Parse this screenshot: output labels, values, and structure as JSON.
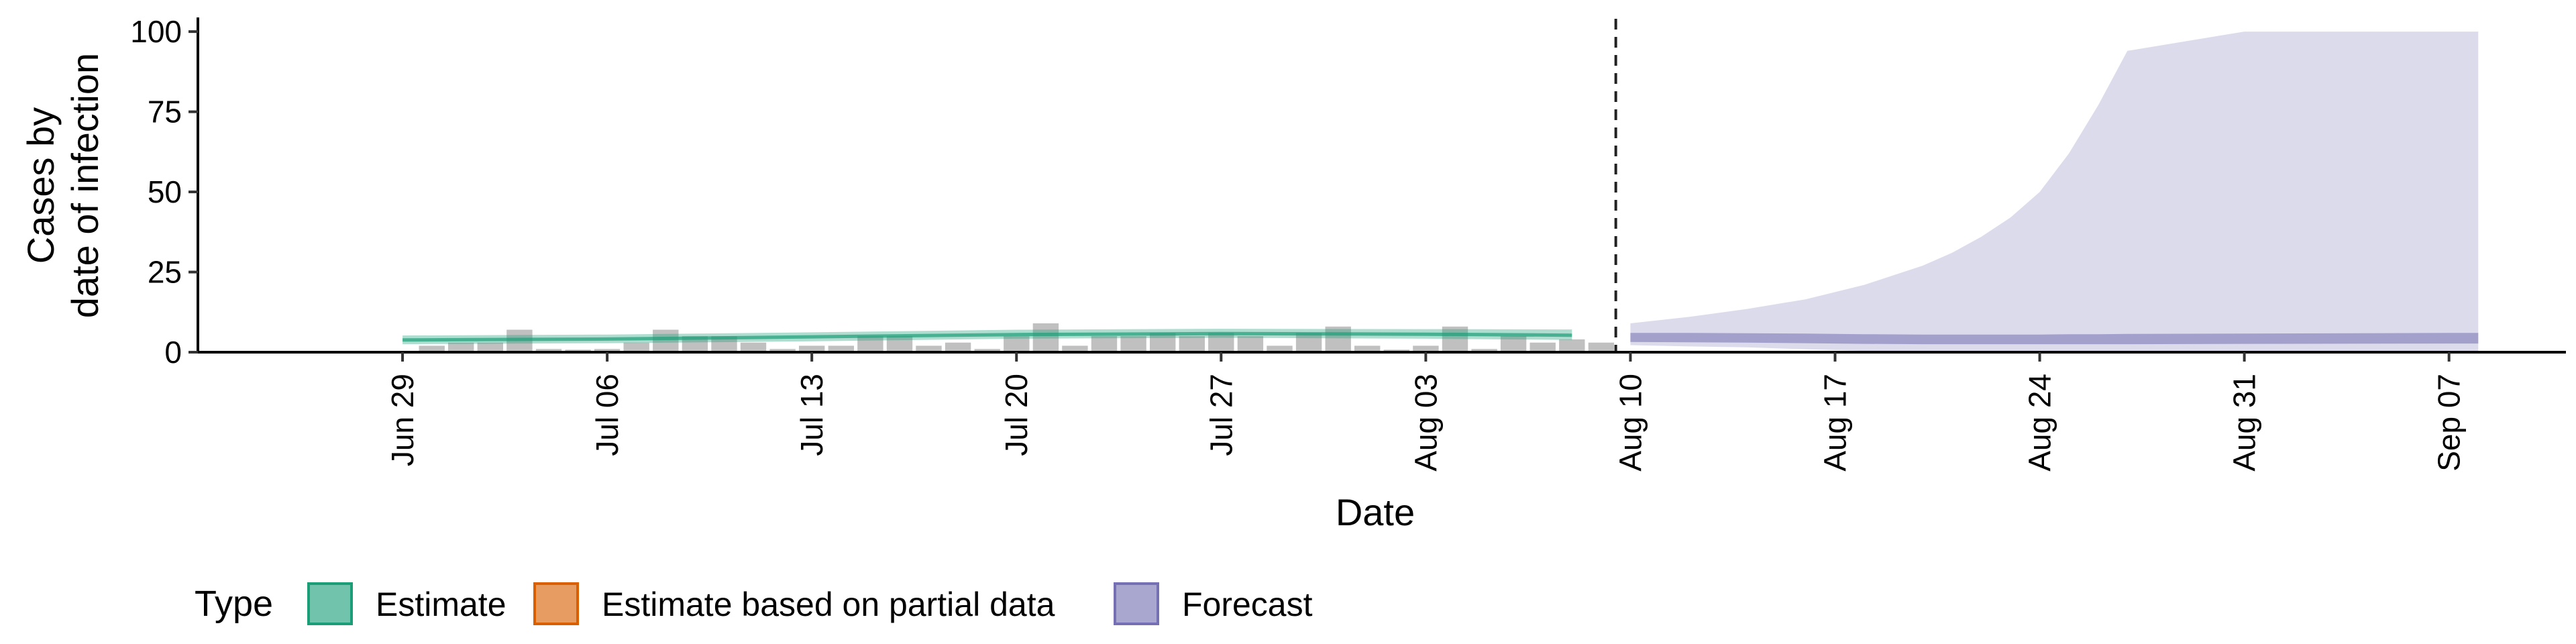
{
  "chart_data": {
    "type": "area",
    "xlabel": "Date",
    "ylabel": [
      "Cases by",
      "date of infection"
    ],
    "ylim": [
      0,
      104
    ],
    "yticks": [
      0,
      25,
      50,
      75,
      100
    ],
    "xlim": [
      "2020-06-22",
      "2020-09-11"
    ],
    "xticks": [
      "2020-06-29",
      "2020-07-06",
      "2020-07-13",
      "2020-07-20",
      "2020-07-27",
      "2020-08-03",
      "2020-08-10",
      "2020-08-17",
      "2020-08-24",
      "2020-08-31",
      "2020-09-07"
    ],
    "xtick_labels": [
      "Jun 29",
      "Jul 06",
      "Jul 13",
      "Jul 20",
      "Jul 27",
      "Aug 03",
      "Aug 10",
      "Aug 17",
      "Aug 24",
      "Aug 31",
      "Sep 07"
    ],
    "forecast_start": "2020-08-09",
    "colors": {
      "Estimate": "#1b9e77",
      "Estimate based on partial data": "#d95f02",
      "Forecast": "#7570b3",
      "bars": "#bdbdbd"
    },
    "legend": {
      "title": "Type",
      "position": "bottom",
      "entries": [
        "Estimate",
        "Estimate based on partial data",
        "Forecast"
      ]
    },
    "bars": {
      "dates": [
        "2020-06-30",
        "2020-07-01",
        "2020-07-02",
        "2020-07-03",
        "2020-07-04",
        "2020-07-05",
        "2020-07-06",
        "2020-07-07",
        "2020-07-08",
        "2020-07-09",
        "2020-07-10",
        "2020-07-11",
        "2020-07-12",
        "2020-07-13",
        "2020-07-14",
        "2020-07-15",
        "2020-07-16",
        "2020-07-17",
        "2020-07-18",
        "2020-07-19",
        "2020-07-20",
        "2020-07-21",
        "2020-07-22",
        "2020-07-23",
        "2020-07-24",
        "2020-07-25",
        "2020-07-26",
        "2020-07-27",
        "2020-07-28",
        "2020-07-29",
        "2020-07-30",
        "2020-07-31",
        "2020-08-01",
        "2020-08-02",
        "2020-08-03",
        "2020-08-04",
        "2020-08-05",
        "2020-08-06",
        "2020-08-07",
        "2020-08-08",
        "2020-08-09"
      ],
      "values": [
        2,
        3,
        3,
        7,
        1,
        0,
        1,
        3,
        7,
        5,
        5,
        3,
        1,
        2,
        2,
        5,
        5,
        2,
        3,
        1,
        5,
        9,
        2,
        5,
        5,
        6,
        5,
        6,
        5,
        2,
        6,
        8,
        2,
        0,
        2,
        8,
        1,
        5,
        3,
        4,
        3
      ]
    },
    "series": [
      {
        "name": "Estimate",
        "dates": [
          "2020-06-29",
          "2020-07-06",
          "2020-07-13",
          "2020-07-20",
          "2020-07-27",
          "2020-08-03",
          "2020-08-08"
        ],
        "median": [
          3.8,
          4.1,
          4.8,
          5.5,
          5.8,
          5.6,
          5.3
        ],
        "lower_90": [
          2.5,
          2.8,
          3.4,
          4.2,
          4.5,
          4.2,
          3.8
        ],
        "upper_90": [
          5.2,
          5.5,
          6.2,
          7.0,
          7.3,
          7.2,
          7.1
        ]
      },
      {
        "name": "Forecast",
        "dates": [
          "2020-08-10",
          "2020-08-12",
          "2020-08-14",
          "2020-08-16",
          "2020-08-18",
          "2020-08-20",
          "2020-08-21",
          "2020-08-22",
          "2020-08-23",
          "2020-08-24",
          "2020-08-25",
          "2020-08-26",
          "2020-08-27",
          "2020-08-31",
          "2020-09-07",
          "2020-09-08"
        ],
        "lower_90": [
          2.2,
          1.8,
          1.5,
          0.9,
          0.4,
          0.2,
          0.2,
          0.2,
          0.2,
          0.2,
          0.2,
          0.2,
          0.2,
          0.2,
          0.2,
          0.2
        ],
        "upper_90": [
          9,
          11,
          13.5,
          16.5,
          21,
          27,
          31,
          36,
          42,
          50,
          62,
          77,
          94,
          100,
          100,
          100
        ],
        "inner_lower": [
          3.2,
          3.1,
          3.0,
          2.8,
          2.6,
          2.5,
          2.5,
          2.5,
          2.5,
          2.5,
          2.5,
          2.5,
          2.5,
          2.6,
          2.7,
          2.7
        ],
        "inner_upper": [
          6.0,
          6.0,
          5.9,
          5.8,
          5.6,
          5.5,
          5.5,
          5.5,
          5.5,
          5.5,
          5.6,
          5.6,
          5.7,
          5.8,
          6.0,
          6.0
        ]
      }
    ]
  }
}
